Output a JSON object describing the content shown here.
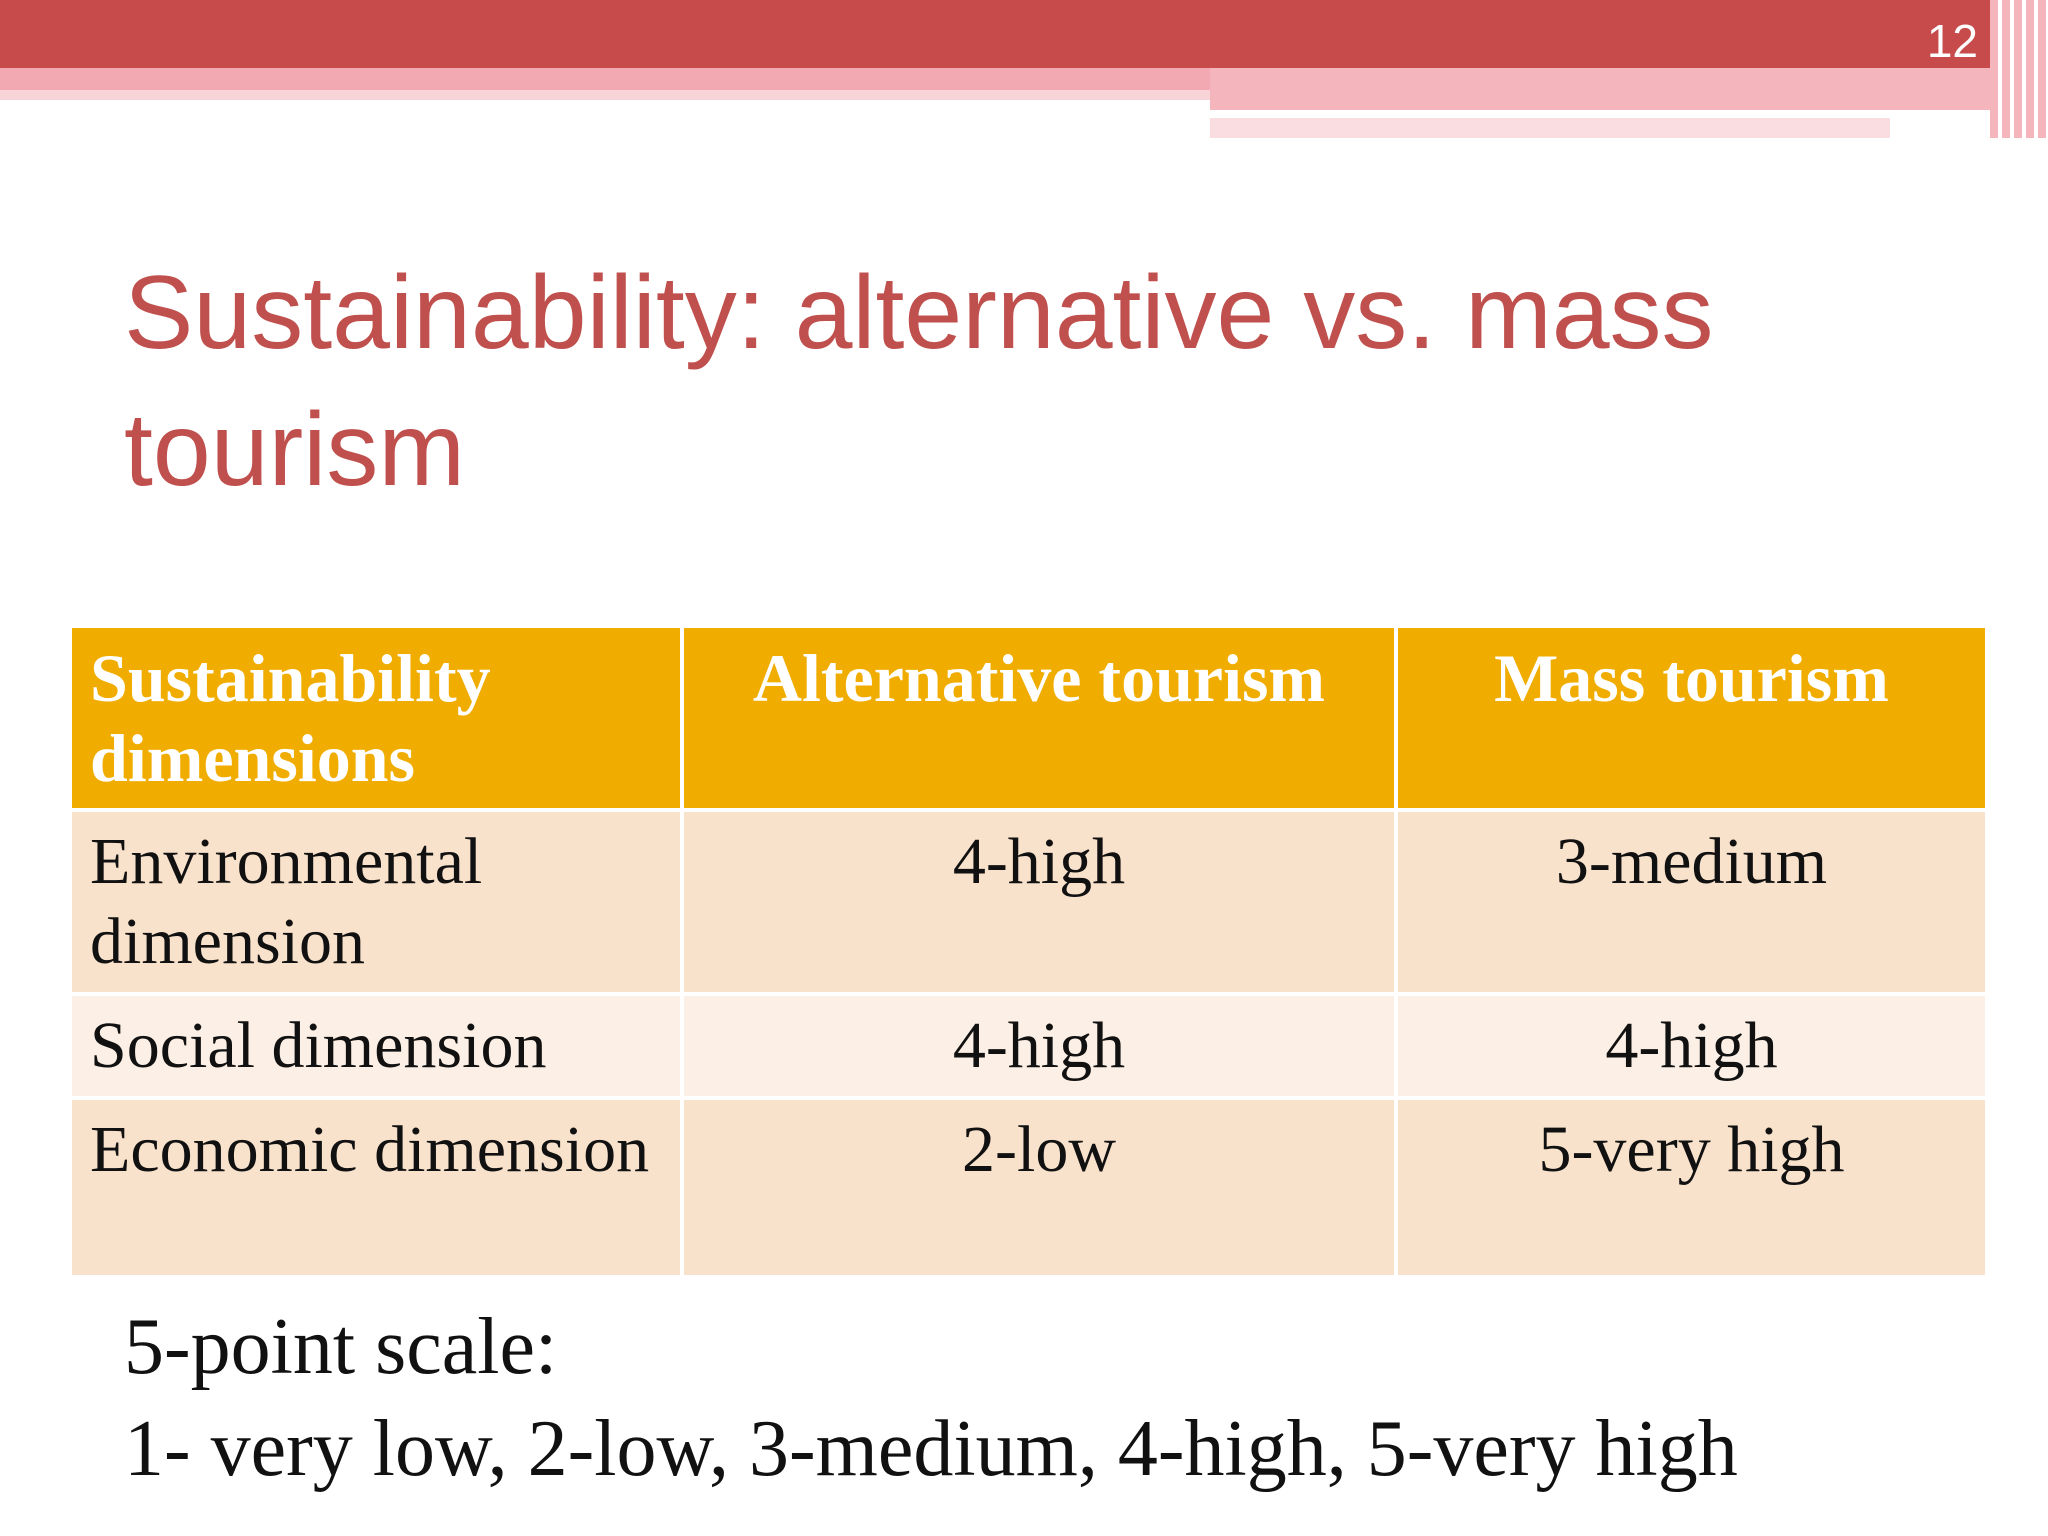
{
  "slide_number": "12",
  "title": "Sustainability: alternative vs. mass tourism",
  "table": {
    "header": [
      "Sustainability dimensions",
      "Alternative tourism",
      "Mass tourism"
    ],
    "rows": [
      [
        "Environmental dimension",
        "4-high",
        "3-medium"
      ],
      [
        "Social dimension",
        "4-high",
        "4-high"
      ],
      [
        "Economic dimension",
        "2-low",
        "5-very high"
      ]
    ]
  },
  "note": [
    "5-point scale:",
    "1- very low, 2-low, 3-medium, 4-high, 5-very high"
  ]
}
